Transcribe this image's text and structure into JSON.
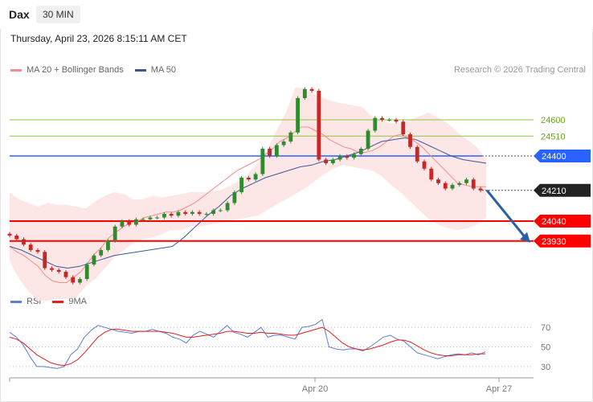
{
  "header": {
    "symbol": "Dax",
    "timeframe": "30 MIN",
    "datetime": "Thursday, April 23, 2026 8:15:11 AM CET"
  },
  "copyright": "Research © 2026 Trading Central",
  "colors": {
    "ma20": "#f48c8c",
    "ma50": "#3b5998",
    "bollinger_fill": "#fde3e3",
    "support": "#ff0000",
    "resistance": "#8dc63f",
    "pivot": "#2962ff",
    "last_price": "#222222",
    "candle_up": "#2e8b2e",
    "candle_down": "#c62828",
    "rsi": "#5b7ed8",
    "rsi_ma": "#e02020",
    "arrow": "#2a5fa8"
  },
  "legend": {
    "ma20_label": "MA 20 + Bollinger Bands",
    "ma50_label": "MA 50",
    "rsi_label": "RSI",
    "rsi_ma_label": "9MA"
  },
  "chart_data": [
    {
      "type": "candlestick",
      "title": "Dax",
      "ylim": [
        23640,
        24840
      ],
      "x_labels": [
        "Apr 20",
        "Apr 27"
      ],
      "levels": [
        {
          "value": 24600,
          "label": "24600",
          "kind": "resistance"
        },
        {
          "value": 24510,
          "label": "24510",
          "kind": "resistance"
        },
        {
          "value": 24400,
          "label": "24400",
          "kind": "pivot"
        },
        {
          "value": 24210,
          "label": "24210",
          "kind": "last"
        },
        {
          "value": 24040,
          "label": "24040",
          "kind": "support"
        },
        {
          "value": 23930,
          "label": "23930",
          "kind": "support"
        }
      ],
      "close": [
        23960,
        23940,
        23910,
        23880,
        23870,
        23780,
        23770,
        23760,
        23730,
        23700,
        23720,
        23800,
        23850,
        23880,
        23930,
        24010,
        24040,
        24020,
        24050,
        24050,
        24060,
        24060,
        24080,
        24070,
        24090,
        24080,
        24090,
        24080,
        24080,
        24100,
        24100,
        24140,
        24200,
        24280,
        24270,
        24300,
        24440,
        24400,
        24460,
        24480,
        24530,
        24720,
        24770,
        24760,
        24380,
        24360,
        24380,
        24400,
        24390,
        24410,
        24440,
        24540,
        24610,
        24600,
        24600,
        24590,
        24520,
        24450,
        24370,
        24330,
        24270,
        24250,
        24220,
        24240,
        24250,
        24270,
        24220,
        24210
      ],
      "ma20": [
        23900,
        23870,
        23850,
        23820,
        23790,
        23740,
        23710,
        23700,
        23700,
        23730,
        23760,
        23810,
        23860,
        23900,
        23950,
        23980,
        24010,
        24030,
        24040,
        24060,
        24070,
        24080,
        24090,
        24090,
        24100,
        24120,
        24140,
        24170,
        24200,
        24230,
        24260,
        24290,
        24320,
        24340,
        24360,
        24380,
        24410,
        24440,
        24480,
        24500,
        24530,
        24560,
        24560,
        24540,
        24520,
        24490,
        24470,
        24450,
        24440,
        24420,
        24420,
        24430,
        24450,
        24480,
        24510,
        24520,
        24500,
        24480,
        24450,
        24410,
        24370,
        24330,
        24290,
        24250,
        24240,
        24230,
        24230,
        24230
      ],
      "ma50": [
        23900,
        23880,
        23850,
        23820,
        23790,
        23780,
        23790,
        23810,
        23830,
        23850,
        23860,
        23870,
        23880,
        23890,
        23900,
        23950,
        24010,
        24070,
        24120,
        24180,
        24220,
        24250,
        24280,
        24300,
        24320,
        24340,
        24350,
        24370,
        24380,
        24400,
        24420,
        24450,
        24480,
        24490,
        24500,
        24490,
        24460,
        24430,
        24400,
        24380,
        24370,
        24360
      ],
      "bb_upper": [
        24200,
        24160,
        24140,
        24120,
        24140,
        24130,
        24130,
        24120,
        24110,
        24150,
        24180,
        24200,
        24190,
        24160,
        24160,
        24180,
        24170,
        24180,
        24190,
        24200,
        24200,
        24200,
        24210,
        24230,
        24260,
        24300,
        24360,
        24430,
        24540,
        24640,
        24780,
        24770,
        24740,
        24720,
        24700,
        24690,
        24680,
        24670,
        24620,
        24600,
        24580,
        24580,
        24600,
        24620,
        24640,
        24610,
        24580,
        24530,
        24490,
        24450,
        24380
      ],
      "bb_lower": [
        23820,
        23720,
        23650,
        23600,
        23600,
        23610,
        23610,
        23620,
        23680,
        23720,
        23780,
        23840,
        23880,
        23920,
        23940,
        23950,
        23970,
        23990,
        23990,
        24010,
        24010,
        24020,
        24030,
        24040,
        24050,
        24060,
        24070,
        24100,
        24130,
        24160,
        24190,
        24220,
        24260,
        24300,
        24330,
        24350,
        24340,
        24330,
        24320,
        24290,
        24240,
        24200,
        24150,
        24100,
        24050,
        24020,
        24000,
        23990,
        24000,
        24020,
        24060
      ]
    },
    {
      "type": "line",
      "title": "RSI",
      "ylim": [
        25,
        80
      ],
      "yticks": [
        30,
        50,
        70
      ],
      "series": [
        {
          "name": "RSI",
          "values": [
            65,
            60,
            52,
            40,
            30,
            30,
            29,
            28,
            30,
            42,
            48,
            60,
            67,
            72,
            70,
            68,
            66,
            65,
            64,
            66,
            66,
            68,
            66,
            64,
            60,
            58,
            54,
            62,
            66,
            63,
            60,
            66,
            72,
            65,
            63,
            60,
            65,
            70,
            60,
            62,
            62,
            60,
            58,
            70,
            71,
            73,
            78,
            50,
            48,
            47,
            48,
            48,
            46,
            50,
            55,
            60,
            62,
            58,
            56,
            50,
            44,
            42,
            40,
            38,
            40,
            42,
            43,
            42,
            44,
            42,
            45
          ]
        },
        {
          "name": "9MA",
          "values": [
            60,
            58,
            54,
            48,
            42,
            38,
            34,
            32,
            31,
            33,
            37,
            44,
            52,
            60,
            65,
            68,
            68,
            67,
            66,
            66,
            66,
            66,
            66,
            65,
            64,
            62,
            60,
            60,
            61,
            62,
            63,
            64,
            66,
            66,
            65,
            64,
            64,
            65,
            64,
            64,
            63,
            62,
            62,
            64,
            66,
            68,
            70,
            66,
            60,
            54,
            50,
            48,
            47,
            48,
            50,
            52,
            55,
            57,
            57,
            55,
            51,
            47,
            44,
            42,
            41,
            41,
            42,
            42,
            42,
            43,
            43
          ]
        }
      ]
    }
  ]
}
